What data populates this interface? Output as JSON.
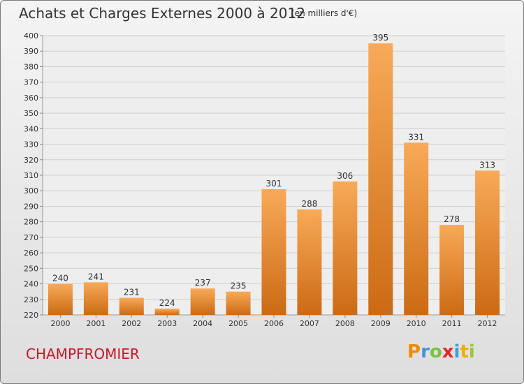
{
  "header": {
    "title": "Achats et Charges Externes 2000 à 2012",
    "unit": "(en milliers d'€)"
  },
  "footer": {
    "commune": "CHAMPFROMIER",
    "logo_text": "Proxiti",
    "logo_colors": [
      "#f08a00",
      "#4a90d9",
      "#7cc142",
      "#e8262d",
      "#3aa0d8",
      "#f0b000",
      "#9bc53d"
    ]
  },
  "colors": {
    "bar_top": "#f8aa58",
    "bar_bottom": "#cc6a14",
    "title": "#333333",
    "commune": "#c8192a"
  },
  "chart_data": {
    "type": "bar",
    "categories": [
      "2000",
      "2001",
      "2002",
      "2003",
      "2004",
      "2005",
      "2006",
      "2007",
      "2008",
      "2009",
      "2010",
      "2011",
      "2012"
    ],
    "values": [
      240,
      241,
      231,
      224,
      237,
      235,
      301,
      288,
      306,
      395,
      331,
      278,
      313
    ],
    "ylim": [
      220,
      400
    ],
    "yticks": [
      220,
      230,
      240,
      250,
      260,
      270,
      280,
      290,
      300,
      310,
      320,
      330,
      340,
      350,
      360,
      370,
      380,
      390,
      400
    ],
    "grid": true,
    "title": "Achats et Charges Externes 2000 à 2012",
    "xlabel": "",
    "ylabel": ""
  }
}
